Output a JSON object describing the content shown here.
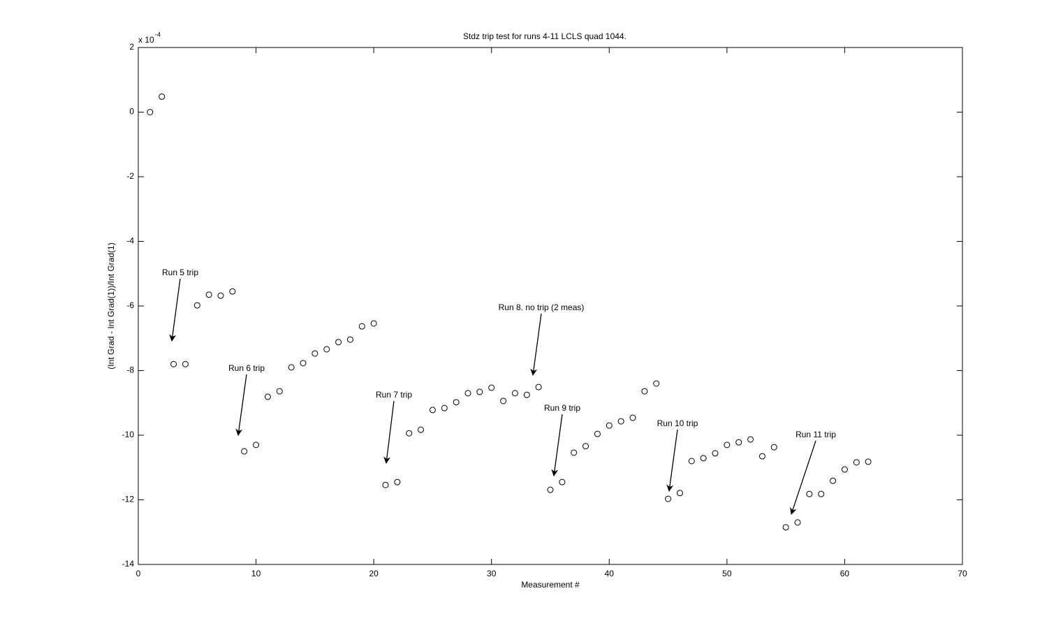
{
  "chart_data": {
    "type": "scatter",
    "title": "Stdz trip test for runs 4-11 LCLS quad 1044.",
    "x_label": "Measurement #",
    "y_label": "(Int Grad - Int Grad(1))/Int Grad(1)",
    "y_multiplier": "x 10",
    "y_exponent": "-4",
    "x": [
      1,
      2,
      3,
      4,
      5,
      6,
      7,
      8,
      9,
      10,
      11,
      12,
      13,
      14,
      15,
      16,
      17,
      18,
      19,
      20,
      21,
      22,
      23,
      24,
      25,
      26,
      27,
      28,
      29,
      30,
      31,
      32,
      33,
      34,
      35,
      36,
      37,
      38,
      39,
      40,
      41,
      42,
      43,
      44,
      45,
      46,
      47,
      48,
      49,
      50,
      51,
      52,
      53,
      54,
      55,
      56,
      57,
      58,
      59,
      60,
      61,
      62
    ],
    "values": [
      0,
      0.48,
      -7.8,
      -7.8,
      -5.98,
      -5.65,
      -5.68,
      -5.55,
      -10.5,
      -10.3,
      -8.81,
      -8.64,
      -7.9,
      -7.77,
      -7.47,
      -7.34,
      -7.12,
      -7.04,
      -6.63,
      -6.54,
      -11.54,
      -11.45,
      -9.94,
      -9.83,
      -9.22,
      -9.16,
      -8.98,
      -8.7,
      -8.66,
      -8.53,
      -8.94,
      -8.7,
      -8.75,
      -8.51,
      -11.69,
      -11.45,
      -10.54,
      -10.34,
      -9.96,
      -9.7,
      -9.57,
      -9.46,
      -8.64,
      -8.4,
      -11.97,
      -11.79,
      -10.8,
      -10.71,
      -10.56,
      -10.3,
      -10.22,
      -10.13,
      -10.65,
      -10.37,
      -12.85,
      -12.7,
      -11.82,
      -11.82,
      -11.41,
      -11.06,
      -10.84,
      -10.82
    ],
    "color": "#000000",
    "xlim": [
      0,
      70
    ],
    "xticks": [
      0,
      10,
      20,
      30,
      40,
      50,
      60,
      70
    ],
    "ylim": [
      -14,
      2
    ],
    "yticks": [
      -14,
      -12,
      -10,
      -8,
      -6,
      -4,
      -2,
      0,
      2
    ],
    "grid": false,
    "annotations": [
      "Run 5 trip",
      "Run 6 trip",
      "Run 7 trip",
      "Run 8. no trip (2 meas)",
      "Run 9 trip",
      "Run 10 trip",
      "Run 11 trip"
    ]
  }
}
